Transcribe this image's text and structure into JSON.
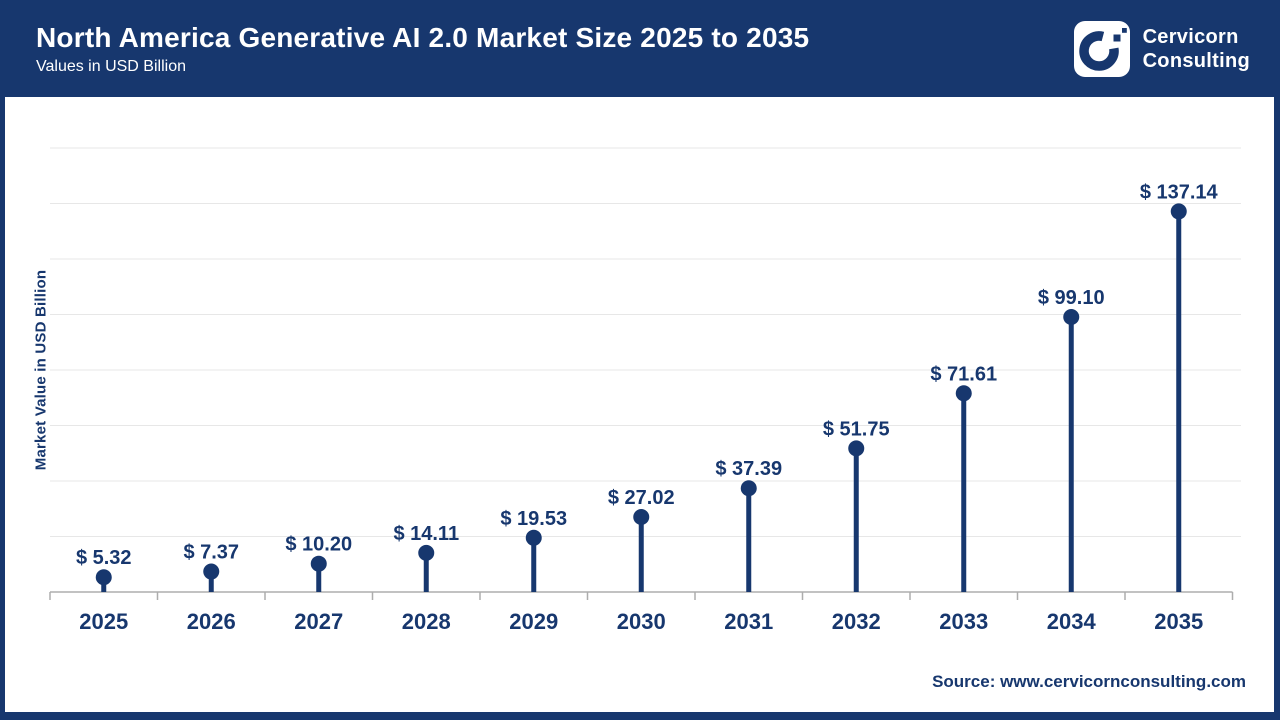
{
  "header": {
    "title": "North America Generative AI 2.0 Market Size 2025 to 2035",
    "subtitle": "Values in USD Billion",
    "brand": {
      "line1": "Cervicorn",
      "line2": "Consulting"
    }
  },
  "chart_data": {
    "type": "bar",
    "style": "lollipop",
    "title": "North America Generative AI 2.0 Market Size 2025 to 2035",
    "categories": [
      "2025",
      "2026",
      "2027",
      "2028",
      "2029",
      "2030",
      "2031",
      "2032",
      "2033",
      "2034",
      "2035"
    ],
    "values": [
      5.32,
      7.37,
      10.2,
      14.11,
      19.53,
      27.02,
      37.39,
      51.75,
      71.61,
      99.1,
      137.14
    ],
    "value_labels": [
      "$ 5.32",
      "$ 7.37",
      "$ 10.20",
      "$ 14.11",
      "$ 19.53",
      "$ 27.02",
      "$ 37.39",
      "$ 51.75",
      "$ 71.61",
      "$ 99.10",
      "$ 137.14"
    ],
    "xlabel": "",
    "ylabel": "Market Value in USD Billion",
    "ylim": [
      0,
      160
    ],
    "grid": true,
    "gridline_step": 20,
    "legend": "none",
    "colors": {
      "accent": "#17376e",
      "gridline": "#e7e7e7",
      "axis": "#adadad"
    }
  },
  "footer": {
    "source": "Source: www.cervicornconsulting.com"
  }
}
